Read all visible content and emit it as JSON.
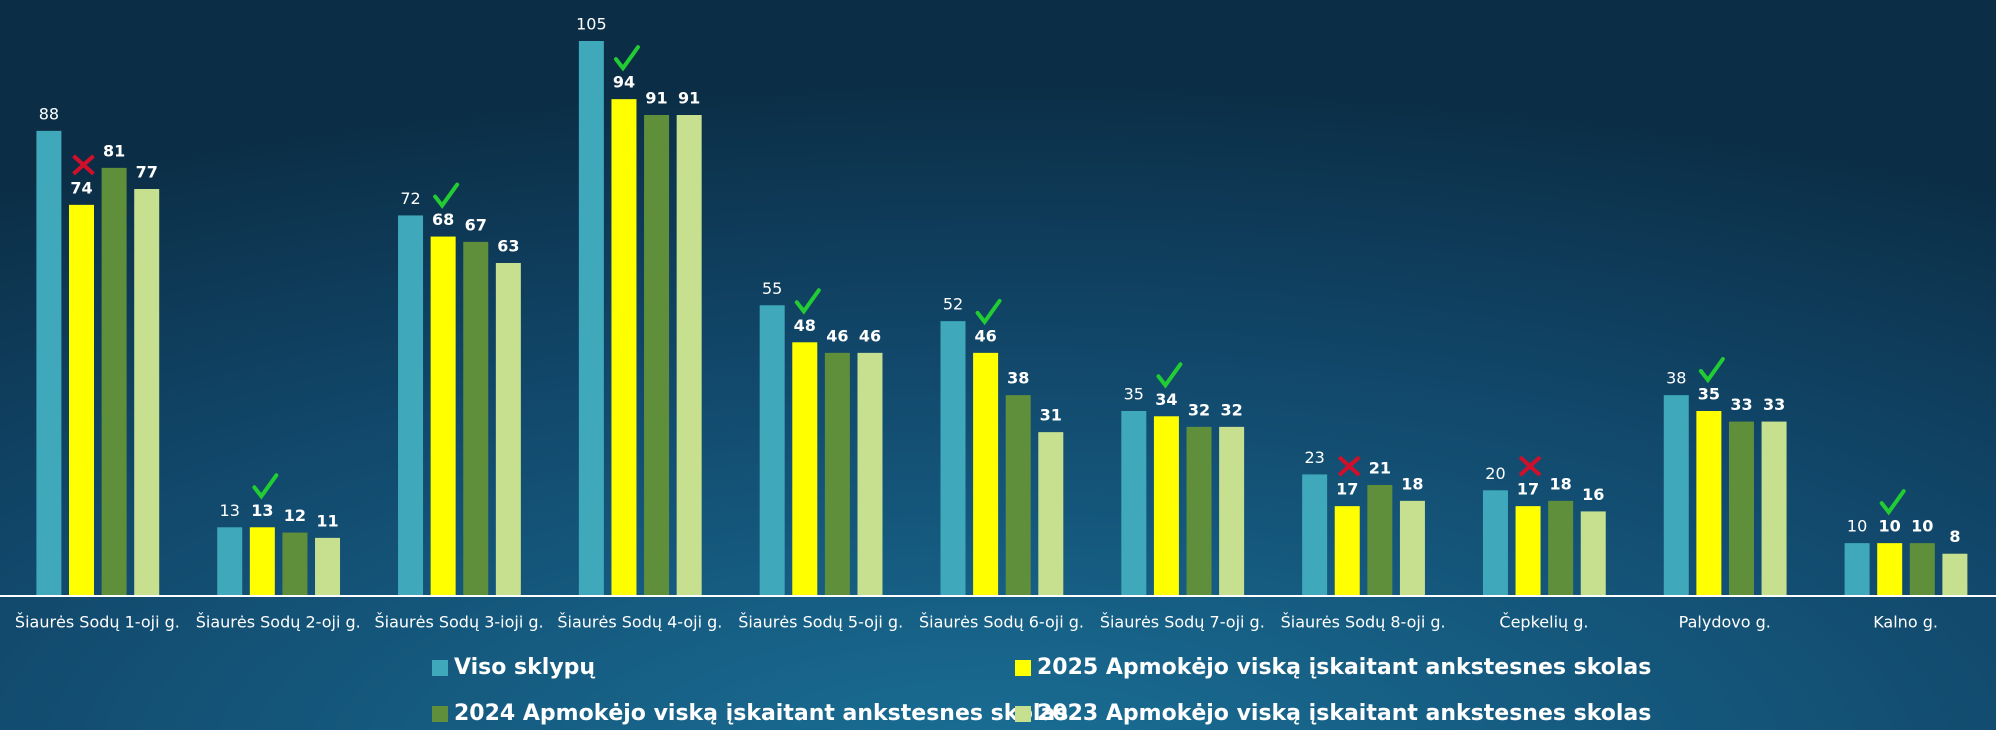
{
  "chart_data": {
    "type": "bar",
    "categories": [
      "Šiaurės Sodų 1-oji g.",
      "Šiaurės Sodų 2-oji g.",
      "Šiaurės Sodų 3-ioji g.",
      "Šiaurės Sodų 4-oji g.",
      "Šiaurės Sodų 5-oji g.",
      "Šiaurės Sodų 6-oji g.",
      "Šiaurės Sodų 7-oji g.",
      "Šiaurės Sodų 8-oji g.",
      "Čepkelių g.",
      "Palydovo g.",
      "Kalno g."
    ],
    "series": [
      {
        "name": "Viso sklypų",
        "color": "#3fa9bb",
        "values": [
          88,
          13,
          72,
          105,
          55,
          52,
          35,
          23,
          20,
          38,
          10
        ]
      },
      {
        "name": "2025 Apmokėjo viską įskaitant ankstesnes skolas",
        "color": "#ffff00",
        "values": [
          74,
          13,
          68,
          94,
          48,
          46,
          34,
          17,
          17,
          35,
          10
        ]
      },
      {
        "name": "2024 Apmokėjo viską įskaitant ankstesnes skolas",
        "color": "#5f8f3a",
        "values": [
          81,
          12,
          67,
          91,
          46,
          38,
          32,
          21,
          18,
          33,
          10
        ]
      },
      {
        "name": "2023 Apmokėjo viską įskaitant ankstesnes skolas",
        "color": "#c6e08f",
        "values": [
          77,
          11,
          63,
          91,
          46,
          31,
          32,
          18,
          16,
          33,
          8
        ]
      }
    ],
    "improved": [
      false,
      true,
      true,
      true,
      true,
      true,
      true,
      false,
      false,
      true,
      true
    ],
    "ylim": [
      0,
      105
    ]
  }
}
